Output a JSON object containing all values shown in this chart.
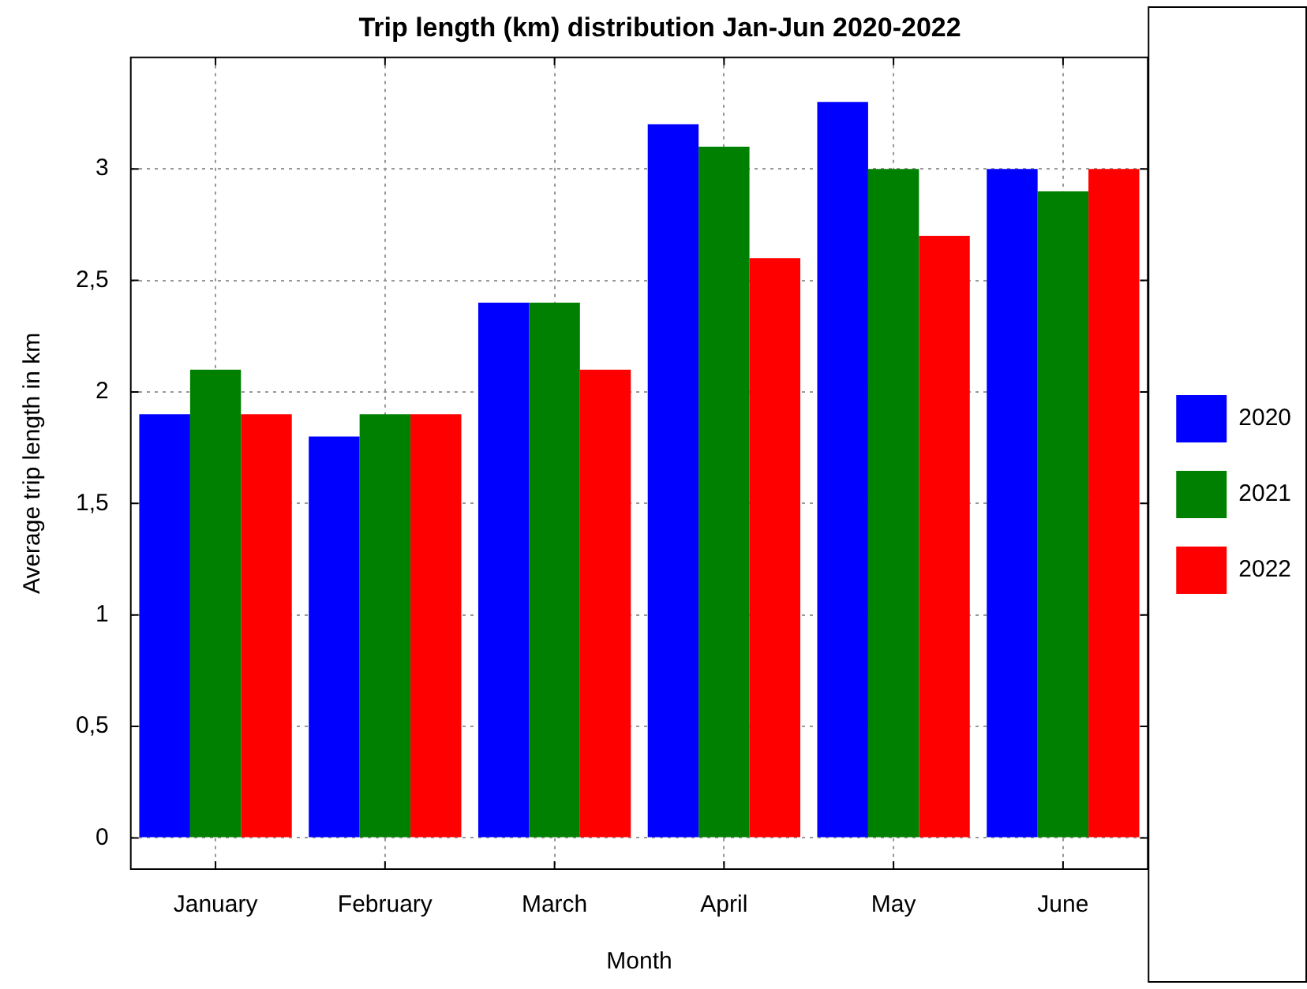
{
  "chart_data": {
    "type": "bar",
    "title": "Trip length (km) distribution Jan-Jun 2020-2022",
    "xlabel": "Month",
    "ylabel": "Average trip length in km",
    "categories": [
      "January",
      "February",
      "March",
      "April",
      "May",
      "June"
    ],
    "series": [
      {
        "name": "2020",
        "color": "#0000ff",
        "values": [
          1.9,
          1.8,
          2.4,
          3.2,
          3.3,
          3.0
        ]
      },
      {
        "name": "2021",
        "color": "#008000",
        "values": [
          2.1,
          1.9,
          2.4,
          3.1,
          3.0,
          2.9
        ]
      },
      {
        "name": "2022",
        "color": "#ff0000",
        "values": [
          1.9,
          1.9,
          2.1,
          2.6,
          2.7,
          3.0
        ]
      }
    ],
    "ylim": [
      -0.14,
      3.5
    ],
    "yticks": [
      0,
      {
        "value": 0.5,
        "label": "0,5"
      },
      1,
      {
        "value": 1.5,
        "label": "1,5"
      },
      2,
      {
        "value": 2.5,
        "label": "2,5"
      },
      3
    ],
    "grid": true,
    "legend": "right"
  }
}
